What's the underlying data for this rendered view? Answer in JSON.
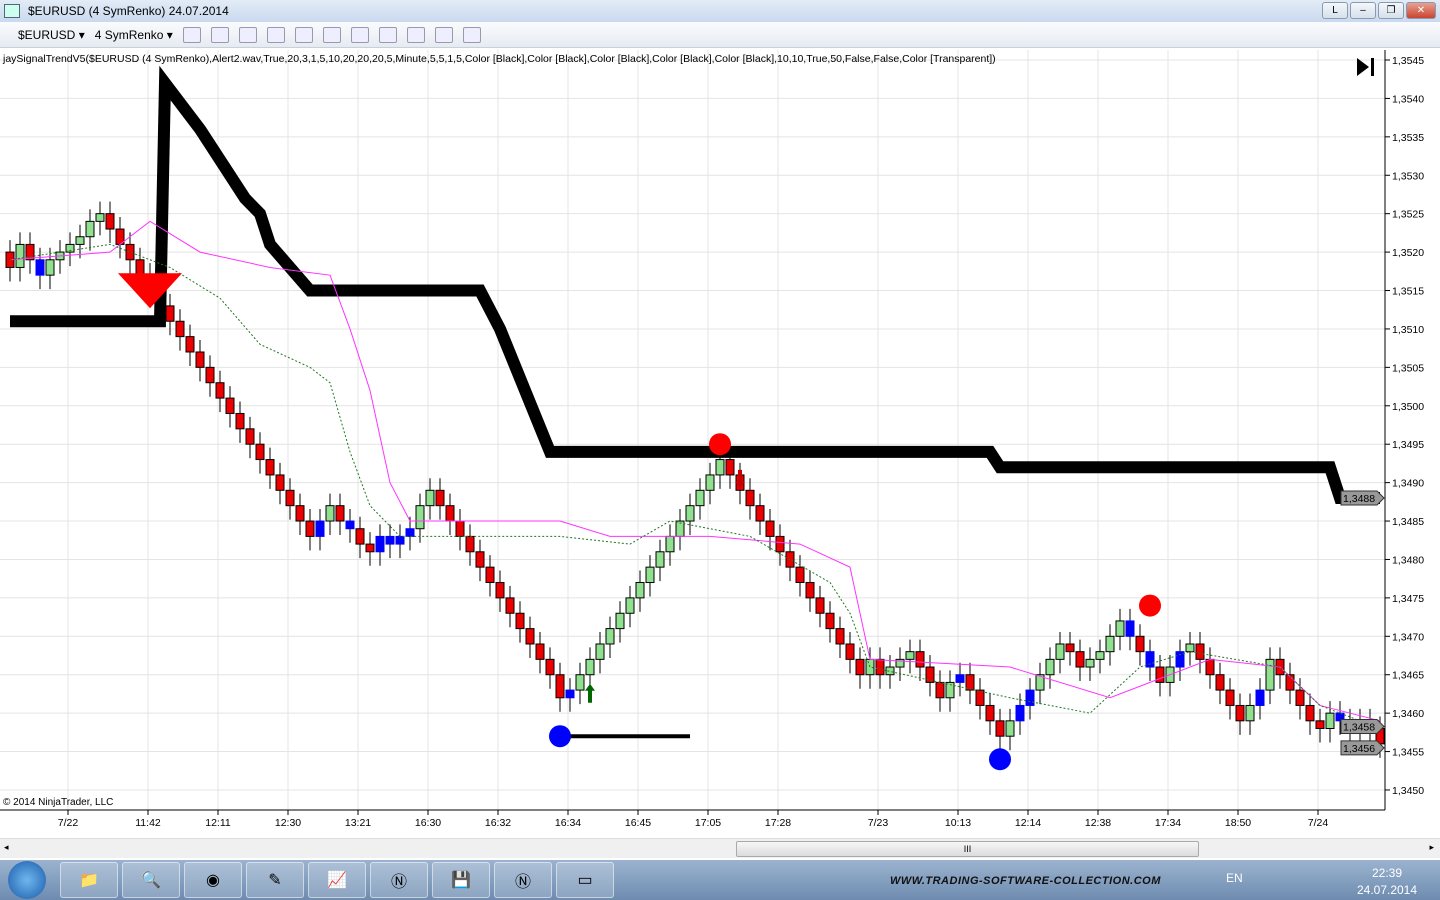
{
  "window": {
    "title": "$EURUSD (4 SymRenko)  24.07.2014",
    "buttons": [
      "L",
      "–",
      "❐",
      "✕"
    ]
  },
  "toolbar": {
    "instrument": "$EURUSD",
    "period": "4 SymRenko"
  },
  "indicator_label": "jaySignalTrendV5($EURUSD  (4  SymRenko),Alert2.wav,True,20,3,1,5,10,20,20,20,5,Minute,5,5,1,5,Color  [Black],Color  [Black],Color  [Black],Color  [Black],Color  [Black],10,10,True,50,False,False,Color  [Transparent])",
  "copyright": "© 2014 NinjaTrader, LLC",
  "scroll_thumb": "III",
  "chart_data": {
    "type": "candlestick",
    "ylim": [
      1.3448,
      1.3546
    ],
    "yticks": [
      "1,3450",
      "1,3455",
      "1,3460",
      "1,3465",
      "1,3470",
      "1,3475",
      "1,3480",
      "1,3485",
      "1,3490",
      "1,3495",
      "1,3500",
      "1,3505",
      "1,3510",
      "1,3515",
      "1,3520",
      "1,3525",
      "1,3530",
      "1,3535",
      "1,3540",
      "1,3545"
    ],
    "xticks": [
      {
        "i": 5.8,
        "label": "7/22"
      },
      {
        "i": 13.8,
        "label": "11:42"
      },
      {
        "i": 20.8,
        "label": "12:11"
      },
      {
        "i": 27.8,
        "label": "12:30"
      },
      {
        "i": 34.8,
        "label": "13:21"
      },
      {
        "i": 41.8,
        "label": "16:30"
      },
      {
        "i": 48.8,
        "label": "16:32"
      },
      {
        "i": 55.8,
        "label": "16:34"
      },
      {
        "i": 62.8,
        "label": "16:45"
      },
      {
        "i": 69.8,
        "label": "17:05"
      },
      {
        "i": 76.8,
        "label": "17:28"
      },
      {
        "i": 86.8,
        "label": "7/23"
      },
      {
        "i": 94.8,
        "label": "10:13"
      },
      {
        "i": 101.8,
        "label": "12:14"
      },
      {
        "i": 108.8,
        "label": "12:38"
      },
      {
        "i": 115.8,
        "label": "17:34"
      },
      {
        "i": 122.8,
        "label": "18:50"
      },
      {
        "i": 130.8,
        "label": "7/24"
      }
    ],
    "closes": [
      1.3518,
      1.3521,
      1.3519,
      1.3517,
      1.3519,
      1.352,
      1.3521,
      1.3522,
      1.3524,
      1.3525,
      1.3523,
      1.3521,
      1.3519,
      1.3517,
      1.3515,
      1.3513,
      1.3511,
      1.3509,
      1.3507,
      1.3505,
      1.3503,
      1.3501,
      1.3499,
      1.3497,
      1.3495,
      1.3493,
      1.3491,
      1.3489,
      1.3487,
      1.3485,
      1.3483,
      1.3485,
      1.3487,
      1.3485,
      1.3484,
      1.3482,
      1.3481,
      1.3483,
      1.3482,
      1.3483,
      1.3484,
      1.3487,
      1.3489,
      1.3487,
      1.3485,
      1.3483,
      1.3481,
      1.3479,
      1.3477,
      1.3475,
      1.3473,
      1.3471,
      1.3469,
      1.3467,
      1.3465,
      1.3462,
      1.3463,
      1.3465,
      1.3467,
      1.3469,
      1.3471,
      1.3473,
      1.3475,
      1.3477,
      1.3479,
      1.3481,
      1.3483,
      1.3485,
      1.3487,
      1.3489,
      1.3491,
      1.3493,
      1.3491,
      1.3489,
      1.3487,
      1.3485,
      1.3483,
      1.3481,
      1.3479,
      1.3477,
      1.3475,
      1.3473,
      1.3471,
      1.3469,
      1.3467,
      1.3465,
      1.3467,
      1.3465,
      1.3466,
      1.3467,
      1.3468,
      1.3466,
      1.3464,
      1.3462,
      1.3464,
      1.3465,
      1.3463,
      1.3461,
      1.3459,
      1.3457,
      1.3459,
      1.3461,
      1.3463,
      1.3465,
      1.3467,
      1.3469,
      1.3468,
      1.3466,
      1.3467,
      1.3468,
      1.347,
      1.3472,
      1.347,
      1.3468,
      1.3466,
      1.3464,
      1.3466,
      1.3468,
      1.3469,
      1.3467,
      1.3465,
      1.3463,
      1.3461,
      1.3459,
      1.3461,
      1.3463,
      1.3467,
      1.3465,
      1.3463,
      1.3461,
      1.3459,
      1.3458,
      1.346,
      1.3459,
      1.3458,
      1.3459,
      1.3458,
      1.3456
    ],
    "blue_bars": [
      3,
      15,
      31,
      34,
      37,
      38,
      39,
      40,
      56,
      95,
      101,
      102,
      112,
      114,
      117,
      125,
      133,
      134,
      135
    ],
    "series": [
      {
        "kind": "trend",
        "color": "#000000",
        "points": [
          [
            0,
            1.3511
          ],
          [
            15,
            1.3511
          ],
          [
            15.5,
            1.3542
          ],
          [
            19,
            1.3536
          ],
          [
            23.5,
            1.3527
          ],
          [
            25,
            1.3525
          ],
          [
            26,
            1.3521
          ],
          [
            30,
            1.3515
          ],
          [
            47,
            1.3515
          ],
          [
            49,
            1.351
          ],
          [
            54,
            1.3494
          ],
          [
            98,
            1.3494
          ],
          [
            99,
            1.3492
          ],
          [
            132,
            1.3492
          ],
          [
            133,
            1.3488
          ],
          [
            137,
            1.3488
          ]
        ]
      },
      {
        "kind": "magenta",
        "color": "#ff33ff",
        "points": [
          [
            0,
            1.3519
          ],
          [
            10,
            1.352
          ],
          [
            14,
            1.3524
          ],
          [
            19,
            1.352
          ],
          [
            26,
            1.3518
          ],
          [
            32,
            1.3517
          ],
          [
            34,
            1.351
          ],
          [
            36,
            1.3502
          ],
          [
            38,
            1.349
          ],
          [
            40,
            1.3485
          ],
          [
            55,
            1.3485
          ],
          [
            60,
            1.3483
          ],
          [
            70,
            1.3483
          ],
          [
            79,
            1.3482
          ],
          [
            84,
            1.3479
          ],
          [
            85,
            1.3473
          ],
          [
            86,
            1.3467
          ],
          [
            100,
            1.3466
          ],
          [
            110,
            1.3462
          ],
          [
            114,
            1.3464
          ],
          [
            120,
            1.3467
          ],
          [
            127,
            1.3466
          ],
          [
            131,
            1.3461
          ],
          [
            137,
            1.3459
          ]
        ]
      },
      {
        "kind": "green-dashed",
        "color": "#227722",
        "points": [
          [
            0,
            1.3519
          ],
          [
            10,
            1.3521
          ],
          [
            16,
            1.3518
          ],
          [
            21,
            1.3514
          ],
          [
            25,
            1.3508
          ],
          [
            30,
            1.3505
          ],
          [
            32,
            1.3503
          ],
          [
            34,
            1.3494
          ],
          [
            36,
            1.3487
          ],
          [
            39,
            1.3483
          ],
          [
            55,
            1.3483
          ],
          [
            62,
            1.3482
          ],
          [
            66,
            1.3485
          ],
          [
            74,
            1.3483
          ],
          [
            82,
            1.3477
          ],
          [
            84,
            1.3473
          ],
          [
            86,
            1.3466
          ],
          [
            100,
            1.3462
          ],
          [
            108,
            1.346
          ],
          [
            113,
            1.3466
          ],
          [
            118,
            1.3468
          ],
          [
            127,
            1.3466
          ],
          [
            131,
            1.3461
          ],
          [
            137,
            1.3458
          ]
        ]
      },
      {
        "kind": "support",
        "color": "#000000",
        "points": [
          [
            55,
            1.3457
          ],
          [
            68,
            1.3457
          ]
        ]
      }
    ],
    "markers": [
      {
        "type": "big-down-triangle",
        "i": 14,
        "price": 1.3514,
        "color": "#ff0000"
      },
      {
        "type": "dot",
        "i": 71,
        "price": 1.3495,
        "color": "#ff0000"
      },
      {
        "type": "dot",
        "i": 114,
        "price": 1.3474,
        "color": "#ff0000"
      },
      {
        "type": "dot",
        "i": 55,
        "price": 1.3457,
        "color": "#0000ff"
      },
      {
        "type": "dot",
        "i": 99,
        "price": 1.3454,
        "color": "#0000ff"
      },
      {
        "type": "up-arrow",
        "i": 58,
        "price": 1.3462,
        "color": "#006600"
      },
      {
        "type": "down-arrow",
        "i": 73,
        "price": 1.3491,
        "color": "#cc0000"
      }
    ],
    "price_badges": [
      "1,3488",
      "1,3458",
      "1,3456"
    ],
    "colors": {
      "up": "#90e090",
      "down": "#ee0000",
      "blue": "#0000ff"
    }
  },
  "taskbar": {
    "items": [
      "folder",
      "search",
      "chrome",
      "notepad",
      "chart",
      "ninja",
      "save",
      "ninja2",
      "window"
    ],
    "site": "WWW.TRADING-SOFTWARE-COLLECTION.COM",
    "lang": "EN",
    "time": "22:39",
    "date": "24.07.2014"
  }
}
